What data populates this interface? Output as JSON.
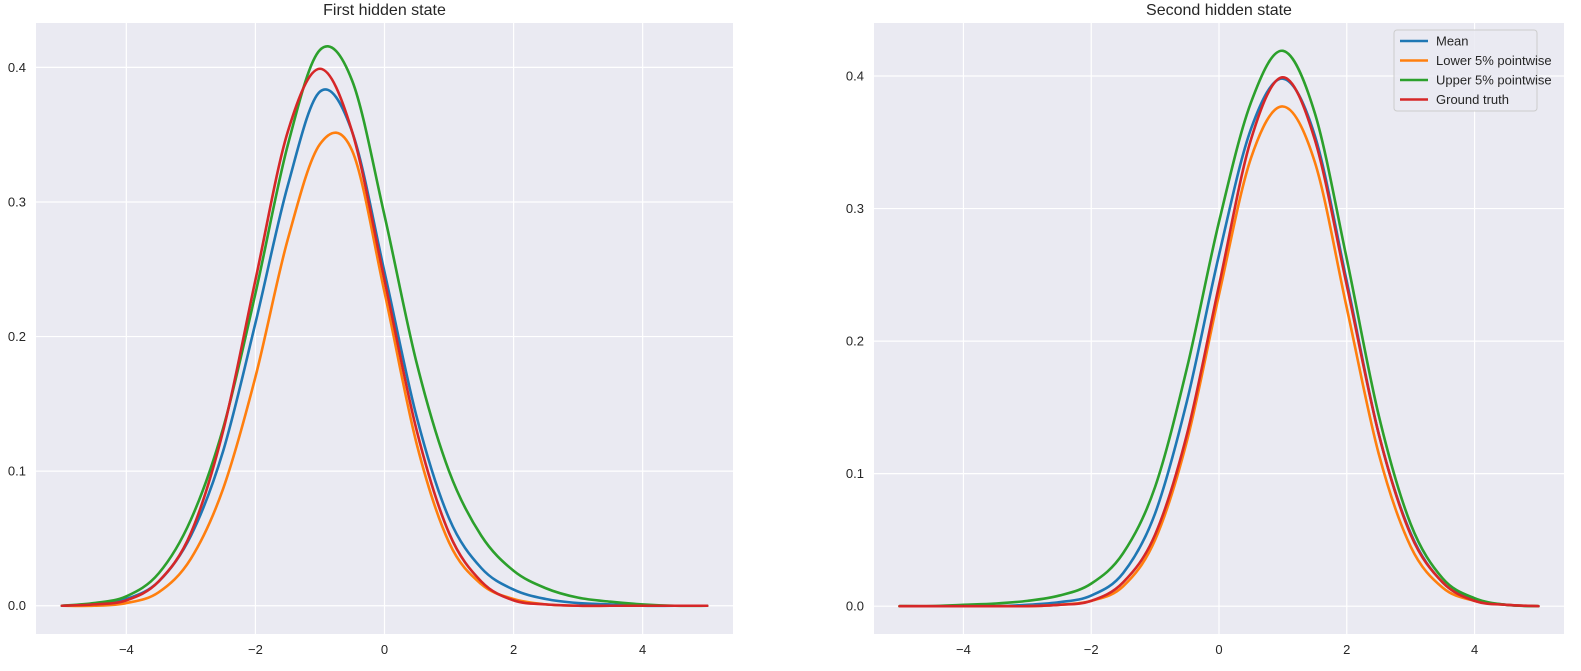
{
  "colors": {
    "background": "#eaeaf2",
    "grid": "#ffffff",
    "text": "#262626",
    "mean": "#1f77b4",
    "lower": "#ff7f0e",
    "upper": "#2ca02c",
    "truth": "#d62728"
  },
  "legend": {
    "placement": "top-right of second panel",
    "entries": [
      {
        "label": "Mean",
        "color": "#1f77b4"
      },
      {
        "label": "Lower 5% pointwise",
        "color": "#ff7f0e"
      },
      {
        "label": "Upper 5% pointwise",
        "color": "#2ca02c"
      },
      {
        "label": "Ground truth",
        "color": "#d62728"
      }
    ]
  },
  "chart_data": [
    {
      "type": "line",
      "title": "First hidden state",
      "xlabel": "",
      "ylabel": "",
      "xlim": [
        -5.4,
        5.4
      ],
      "ylim": [
        -0.021,
        0.433
      ],
      "xticks": [
        -4,
        -2,
        0,
        2,
        4
      ],
      "xtick_labels": [
        "−4",
        "−2",
        "0",
        "2",
        "4"
      ],
      "yticks": [
        0.0,
        0.1,
        0.2,
        0.3,
        0.4
      ],
      "ytick_labels": [
        "0.0",
        "0.1",
        "0.2",
        "0.3",
        "0.4"
      ],
      "grid": true,
      "series": [
        {
          "name": "Mean",
          "color": "#1f77b4",
          "x": [
            -5,
            -4.5,
            -4,
            -3.5,
            -3,
            -2.5,
            -2,
            -1.5,
            -1,
            -0.5,
            0,
            0.5,
            1,
            1.5,
            2,
            2.5,
            3,
            3.5,
            4,
            4.5,
            5
          ],
          "y": [
            0.0,
            0.001,
            0.005,
            0.018,
            0.052,
            0.115,
            0.21,
            0.312,
            0.382,
            0.352,
            0.248,
            0.14,
            0.065,
            0.028,
            0.012,
            0.005,
            0.002,
            0.001,
            0.0,
            0.0,
            0.0
          ]
        },
        {
          "name": "Lower 5% pointwise",
          "color": "#ff7f0e",
          "x": [
            -5,
            -4.5,
            -4,
            -3.5,
            -3,
            -2.5,
            -2,
            -1.5,
            -1,
            -0.5,
            0,
            0.5,
            1,
            1.5,
            2,
            2.5,
            3,
            3.5,
            4,
            4.5,
            5
          ],
          "y": [
            0.0,
            0.0,
            0.002,
            0.01,
            0.035,
            0.087,
            0.17,
            0.272,
            0.343,
            0.338,
            0.233,
            0.12,
            0.047,
            0.016,
            0.005,
            0.001,
            0.0,
            0.0,
            0.0,
            0.0,
            0.0
          ]
        },
        {
          "name": "Upper 5% pointwise",
          "color": "#2ca02c",
          "x": [
            -5,
            -4.5,
            -4,
            -3.5,
            -3,
            -2.5,
            -2,
            -1.5,
            -1,
            -0.5,
            0,
            0.5,
            1,
            1.5,
            2,
            2.5,
            3,
            3.5,
            4,
            4.5,
            5
          ],
          "y": [
            0.0,
            0.002,
            0.007,
            0.024,
            0.064,
            0.132,
            0.232,
            0.342,
            0.413,
            0.39,
            0.29,
            0.18,
            0.1,
            0.052,
            0.026,
            0.013,
            0.006,
            0.003,
            0.001,
            0.0,
            0.0
          ]
        },
        {
          "name": "Ground truth",
          "color": "#d62728",
          "x": [
            -5,
            -4.5,
            -4,
            -3.5,
            -3,
            -2.5,
            -2,
            -1.5,
            -1,
            -0.5,
            0,
            0.5,
            1,
            1.5,
            2,
            2.5,
            3,
            3.5,
            4,
            4.5,
            5
          ],
          "y": [
            0.0,
            0.001,
            0.004,
            0.018,
            0.054,
            0.13,
            0.242,
            0.352,
            0.399,
            0.352,
            0.242,
            0.13,
            0.054,
            0.018,
            0.004,
            0.001,
            0.0,
            0.0,
            0.0,
            0.0,
            0.0
          ]
        }
      ]
    },
    {
      "type": "line",
      "title": "Second hidden state",
      "xlabel": "",
      "ylabel": "",
      "xlim": [
        -5.4,
        5.4
      ],
      "ylim": [
        -0.021,
        0.44
      ],
      "xticks": [
        -4,
        -2,
        0,
        2,
        4
      ],
      "xtick_labels": [
        "−4",
        "−2",
        "0",
        "2",
        "4"
      ],
      "yticks": [
        0.0,
        0.1,
        0.2,
        0.3,
        0.4
      ],
      "ytick_labels": [
        "0.0",
        "0.1",
        "0.2",
        "0.3",
        "0.4"
      ],
      "grid": true,
      "series": [
        {
          "name": "Mean",
          "color": "#1f77b4",
          "x": [
            -5,
            -4.5,
            -4,
            -3.5,
            -3,
            -2.5,
            -2,
            -1.5,
            -1,
            -0.5,
            0,
            0.5,
            1,
            1.5,
            2,
            2.5,
            3,
            3.5,
            4,
            4.5,
            5
          ],
          "y": [
            0.0,
            0.0,
            0.0,
            0.0,
            0.001,
            0.003,
            0.008,
            0.025,
            0.07,
            0.155,
            0.265,
            0.36,
            0.398,
            0.355,
            0.245,
            0.13,
            0.055,
            0.018,
            0.005,
            0.001,
            0.0
          ]
        },
        {
          "name": "Lower 5% pointwise",
          "color": "#ff7f0e",
          "x": [
            -5,
            -4.5,
            -4,
            -3.5,
            -3,
            -2.5,
            -2,
            -1.5,
            -1,
            -0.5,
            0,
            0.5,
            1,
            1.5,
            2,
            2.5,
            3,
            3.5,
            4,
            4.5,
            5
          ],
          "y": [
            0.0,
            0.0,
            0.0,
            0.0,
            0.0,
            0.001,
            0.004,
            0.015,
            0.05,
            0.125,
            0.235,
            0.338,
            0.377,
            0.335,
            0.225,
            0.115,
            0.045,
            0.014,
            0.004,
            0.001,
            0.0
          ]
        },
        {
          "name": "Upper 5% pointwise",
          "color": "#2ca02c",
          "x": [
            -5,
            -4.5,
            -4,
            -3.5,
            -3,
            -2.5,
            -2,
            -1.5,
            -1,
            -0.5,
            0,
            0.5,
            1,
            1.5,
            2,
            2.5,
            3,
            3.5,
            4,
            4.5,
            5
          ],
          "y": [
            0.0,
            0.0,
            0.001,
            0.002,
            0.004,
            0.008,
            0.017,
            0.04,
            0.09,
            0.18,
            0.29,
            0.38,
            0.419,
            0.372,
            0.262,
            0.144,
            0.062,
            0.021,
            0.006,
            0.001,
            0.0
          ]
        },
        {
          "name": "Ground truth",
          "color": "#d62728",
          "x": [
            -5,
            -4.5,
            -4,
            -3.5,
            -3,
            -2.5,
            -2,
            -1.5,
            -1,
            -0.5,
            0,
            0.5,
            1,
            1.5,
            2,
            2.5,
            3,
            3.5,
            4,
            4.5,
            5
          ],
          "y": [
            0.0,
            0.0,
            0.0,
            0.0,
            0.0,
            0.001,
            0.004,
            0.018,
            0.054,
            0.13,
            0.242,
            0.352,
            0.399,
            0.352,
            0.242,
            0.13,
            0.054,
            0.018,
            0.004,
            0.001,
            0.0
          ]
        }
      ]
    }
  ]
}
